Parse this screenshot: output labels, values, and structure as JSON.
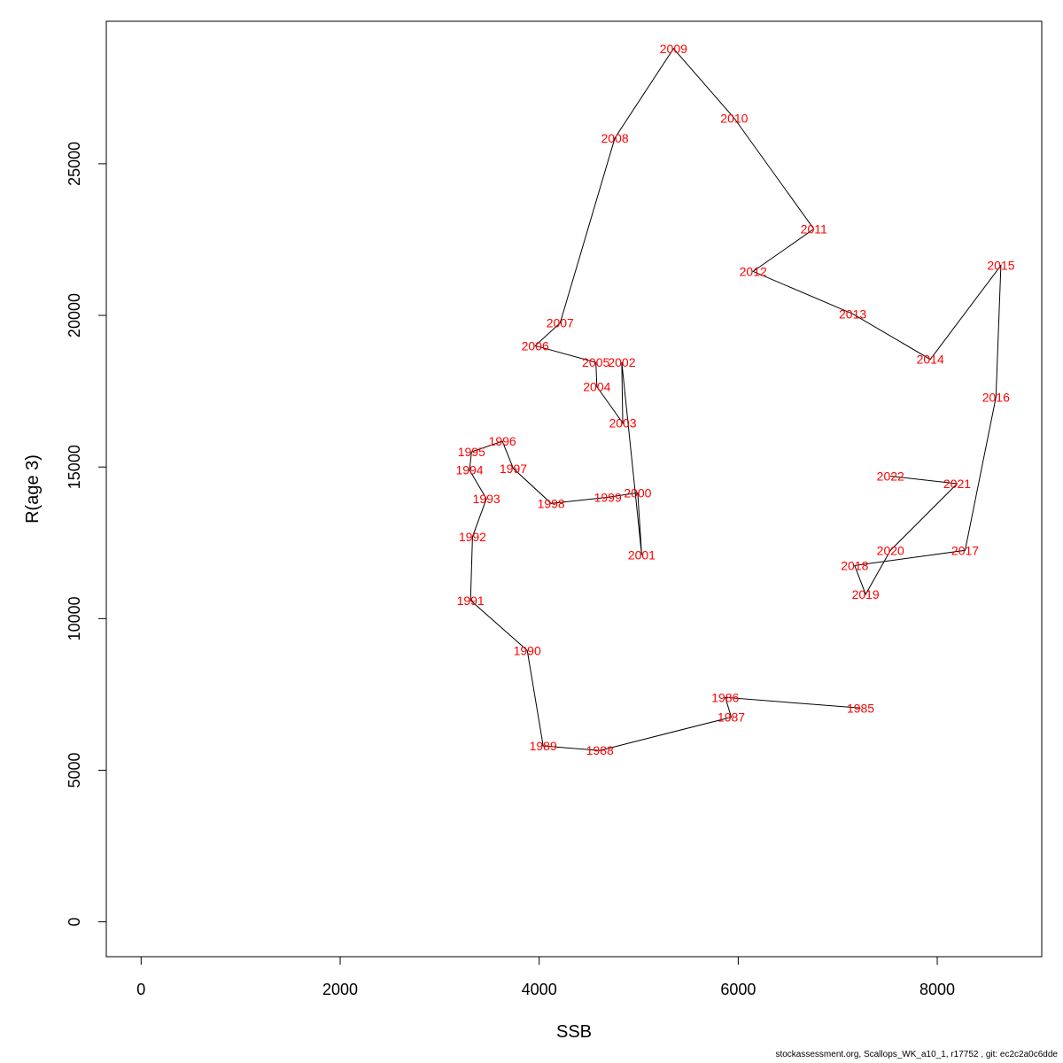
{
  "chart_data": {
    "type": "line",
    "xlabel": "SSB",
    "ylabel": "R(age 3)",
    "xlim": [
      -350,
      9050
    ],
    "ylim": [
      -1150,
      29700
    ],
    "x_ticks": [
      0,
      2000,
      4000,
      6000,
      8000
    ],
    "x_tick_labels": [
      "0",
      "2000",
      "4000",
      "6000",
      "8000"
    ],
    "y_ticks": [
      0,
      5000,
      10000,
      15000,
      20000,
      25000
    ],
    "y_tick_labels": [
      "0",
      "5000",
      "10000",
      "15000",
      "20000",
      "25000"
    ],
    "grid": false,
    "line_color": "#000000",
    "label_color": "#ff0000",
    "points": [
      {
        "label": "1985",
        "x": 7230,
        "y": 7050
      },
      {
        "label": "1986",
        "x": 5870,
        "y": 7400
      },
      {
        "label": "1987",
        "x": 5930,
        "y": 6750
      },
      {
        "label": "1988",
        "x": 4610,
        "y": 5650
      },
      {
        "label": "1989",
        "x": 4040,
        "y": 5800
      },
      {
        "label": "1990",
        "x": 3880,
        "y": 8950
      },
      {
        "label": "1991",
        "x": 3310,
        "y": 10600
      },
      {
        "label": "1992",
        "x": 3330,
        "y": 12700
      },
      {
        "label": "1993",
        "x": 3470,
        "y": 13950
      },
      {
        "label": "1994",
        "x": 3300,
        "y": 14900
      },
      {
        "label": "1995",
        "x": 3320,
        "y": 15500
      },
      {
        "label": "1996",
        "x": 3630,
        "y": 15850
      },
      {
        "label": "1997",
        "x": 3740,
        "y": 14950
      },
      {
        "label": "1998",
        "x": 4120,
        "y": 13800
      },
      {
        "label": "1999",
        "x": 4690,
        "y": 14000
      },
      {
        "label": "2000",
        "x": 4990,
        "y": 14150
      },
      {
        "label": "2001",
        "x": 5030,
        "y": 12100
      },
      {
        "label": "2002",
        "x": 4830,
        "y": 18450
      },
      {
        "label": "2003",
        "x": 4840,
        "y": 16450
      },
      {
        "label": "2004",
        "x": 4580,
        "y": 17650
      },
      {
        "label": "2005",
        "x": 4570,
        "y": 18450
      },
      {
        "label": "2006",
        "x": 3960,
        "y": 19000
      },
      {
        "label": "2007",
        "x": 4210,
        "y": 19750
      },
      {
        "label": "2008",
        "x": 4760,
        "y": 25850
      },
      {
        "label": "2009",
        "x": 5350,
        "y": 28800
      },
      {
        "label": "2010",
        "x": 5960,
        "y": 26500
      },
      {
        "label": "2011",
        "x": 6760,
        "y": 22850
      },
      {
        "label": "2012",
        "x": 6150,
        "y": 21450
      },
      {
        "label": "2013",
        "x": 7150,
        "y": 20050
      },
      {
        "label": "2014",
        "x": 7930,
        "y": 18550
      },
      {
        "label": "2015",
        "x": 8640,
        "y": 21650
      },
      {
        "label": "2016",
        "x": 8590,
        "y": 17300
      },
      {
        "label": "2017",
        "x": 8280,
        "y": 12250
      },
      {
        "label": "2018",
        "x": 7170,
        "y": 11750
      },
      {
        "label": "2019",
        "x": 7280,
        "y": 10800
      },
      {
        "label": "2020",
        "x": 7530,
        "y": 12250
      },
      {
        "label": "2021",
        "x": 8200,
        "y": 14450
      },
      {
        "label": "2022",
        "x": 7530,
        "y": 14700
      }
    ]
  },
  "footer": {
    "text": "stockassessment.org, Scallops_WK_a10_1, r17752 , git: ec2c2a0c6dde"
  }
}
